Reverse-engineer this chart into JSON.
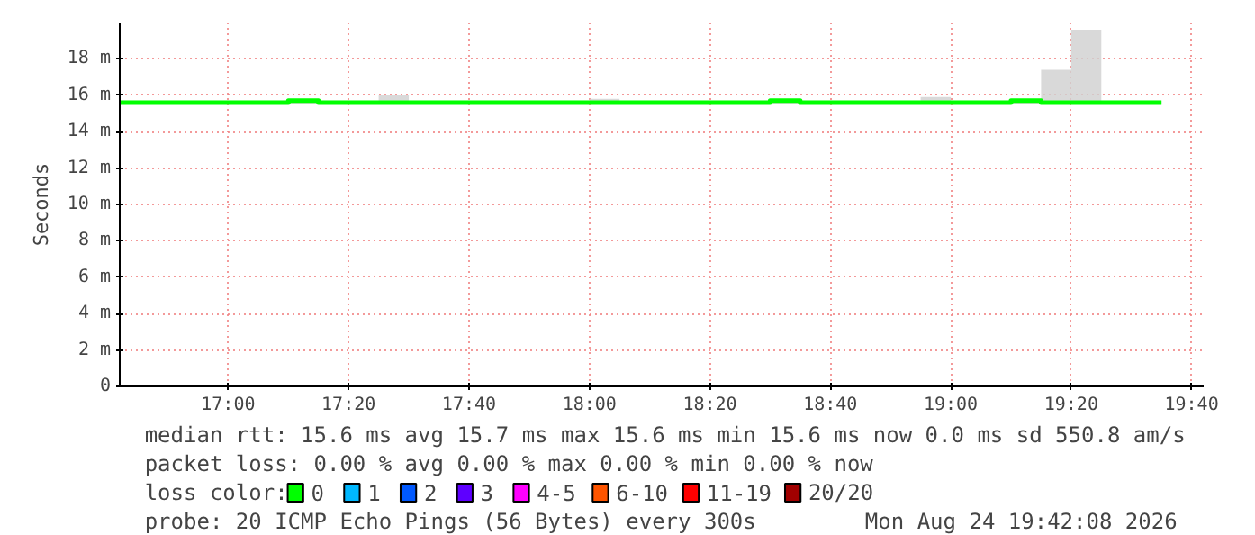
{
  "chart_data": {
    "type": "step",
    "ylabel": "Seconds",
    "xlim": [
      "2026-08-24T16:42",
      "2026-08-24T19:42"
    ],
    "xticks": [
      {
        "value": "2026-08-24T17:00",
        "label": "17:00"
      },
      {
        "value": "2026-08-24T17:20",
        "label": "17:20"
      },
      {
        "value": "2026-08-24T17:40",
        "label": "17:40"
      },
      {
        "value": "2026-08-24T18:00",
        "label": "18:00"
      },
      {
        "value": "2026-08-24T18:20",
        "label": "18:20"
      },
      {
        "value": "2026-08-24T18:40",
        "label": "18:40"
      },
      {
        "value": "2026-08-24T19:00",
        "label": "19:00"
      },
      {
        "value": "2026-08-24T19:20",
        "label": "19:20"
      },
      {
        "value": "2026-08-24T19:40",
        "label": "19:40"
      }
    ],
    "ylim": [
      0,
      20
    ],
    "yticks": [
      0,
      {
        "value": 2,
        "label": "2 m"
      },
      {
        "value": 4,
        "label": "4 m"
      },
      {
        "value": 6,
        "label": "6 m"
      },
      {
        "value": 8,
        "label": "8 m"
      },
      {
        "value": 10,
        "label": "10 m"
      },
      {
        "value": 12,
        "label": "12 m"
      },
      {
        "value": 14,
        "label": "14 m"
      },
      {
        "value": 16,
        "label": "16 m"
      },
      {
        "value": 18,
        "label": "18 m"
      }
    ],
    "x": [
      "2026-08-24T16:42",
      "2026-08-24T16:45",
      "2026-08-24T16:50",
      "2026-08-24T16:55",
      "2026-08-24T17:00",
      "2026-08-24T17:05",
      "2026-08-24T17:10",
      "2026-08-24T17:15",
      "2026-08-24T17:20",
      "2026-08-24T17:25",
      "2026-08-24T17:30",
      "2026-08-24T17:35",
      "2026-08-24T17:40",
      "2026-08-24T17:45",
      "2026-08-24T17:50",
      "2026-08-24T17:55",
      "2026-08-24T18:00",
      "2026-08-24T18:05",
      "2026-08-24T18:10",
      "2026-08-24T18:15",
      "2026-08-24T18:20",
      "2026-08-24T18:25",
      "2026-08-24T18:30",
      "2026-08-24T18:35",
      "2026-08-24T18:40",
      "2026-08-24T18:45",
      "2026-08-24T18:50",
      "2026-08-24T18:55",
      "2026-08-24T19:00",
      "2026-08-24T19:05",
      "2026-08-24T19:10",
      "2026-08-24T19:15",
      "2026-08-24T19:20",
      "2026-08-24T19:25",
      "2026-08-24T19:30",
      "2026-08-24T19:35"
    ],
    "series": [
      {
        "name": "0",
        "color": "#00ff00",
        "values": [
          15.6,
          15.6,
          15.6,
          15.6,
          15.6,
          15.6,
          15.7,
          15.6,
          15.6,
          15.6,
          15.6,
          15.6,
          15.6,
          15.6,
          15.6,
          15.6,
          15.6,
          15.6,
          15.6,
          15.6,
          15.6,
          15.6,
          15.7,
          15.6,
          15.6,
          15.6,
          15.6,
          15.6,
          15.6,
          15.6,
          15.7,
          15.6,
          15.6,
          15.6,
          15.6,
          15.6
        ],
        "lower": [
          15.5,
          15.5,
          15.5,
          15.5,
          15.5,
          15.5,
          15.5,
          15.5,
          15.5,
          15.5,
          15.5,
          15.5,
          15.5,
          15.5,
          15.5,
          15.5,
          15.5,
          15.5,
          15.5,
          15.5,
          15.5,
          15.5,
          15.5,
          15.5,
          15.5,
          15.5,
          15.5,
          15.5,
          15.5,
          15.5,
          15.5,
          15.5,
          15.5,
          15.5,
          15.5,
          15.5
        ],
        "upper": [
          15.7,
          15.7,
          15.7,
          15.7,
          15.7,
          15.7,
          15.7,
          15.7,
          15.7,
          16.0,
          15.7,
          15.7,
          15.7,
          15.7,
          15.7,
          15.7,
          15.8,
          15.7,
          15.7,
          15.7,
          15.7,
          15.7,
          15.7,
          15.7,
          15.7,
          15.7,
          15.7,
          15.9,
          15.7,
          15.7,
          15.7,
          17.4,
          19.6,
          15.7,
          15.7,
          15.7
        ]
      },
      {
        "name": "1",
        "color": "#00b8ff",
        "values": [
          null,
          null,
          null,
          null,
          null,
          null,
          null,
          null,
          null,
          null,
          null,
          null,
          null,
          null,
          null,
          null,
          null,
          null,
          null,
          null,
          null,
          null,
          null,
          null,
          null,
          null,
          null,
          null,
          null,
          null,
          null,
          null,
          null,
          null,
          null,
          null
        ]
      },
      {
        "name": "2",
        "color": "#0059ff",
        "values": [
          null,
          null,
          null,
          null,
          null,
          null,
          null,
          null,
          null,
          null,
          null,
          null,
          null,
          null,
          null,
          null,
          null,
          null,
          null,
          null,
          null,
          null,
          null,
          null,
          null,
          null,
          null,
          null,
          null,
          null,
          null,
          null,
          null,
          null,
          null,
          null
        ]
      },
      {
        "name": "3",
        "color": "#5e00ff",
        "values": [
          null,
          null,
          null,
          null,
          null,
          null,
          null,
          null,
          null,
          null,
          null,
          null,
          null,
          null,
          null,
          null,
          null,
          null,
          null,
          null,
          null,
          null,
          null,
          null,
          null,
          null,
          null,
          null,
          null,
          null,
          null,
          null,
          null,
          null,
          null,
          null
        ]
      },
      {
        "name": "4-5",
        "color": "#ff00ff",
        "values": [
          null,
          null,
          null,
          null,
          null,
          null,
          null,
          null,
          null,
          null,
          null,
          null,
          null,
          null,
          null,
          null,
          null,
          null,
          null,
          null,
          null,
          null,
          null,
          null,
          null,
          null,
          null,
          null,
          null,
          null,
          null,
          null,
          null,
          null,
          null,
          null
        ]
      },
      {
        "name": "6-10",
        "color": "#ff5500",
        "values": [
          null,
          null,
          null,
          null,
          null,
          null,
          null,
          null,
          null,
          null,
          null,
          null,
          null,
          null,
          null,
          null,
          null,
          null,
          null,
          null,
          null,
          null,
          null,
          null,
          null,
          null,
          null,
          null,
          null,
          null,
          null,
          null,
          null,
          null,
          null,
          null
        ]
      },
      {
        "name": "11-19",
        "color": "#ff0000",
        "values": [
          null,
          null,
          null,
          null,
          null,
          null,
          null,
          null,
          null,
          null,
          null,
          null,
          null,
          null,
          null,
          null,
          null,
          null,
          null,
          null,
          null,
          null,
          null,
          null,
          null,
          null,
          null,
          null,
          null,
          null,
          null,
          null,
          null,
          null,
          null,
          null
        ]
      },
      {
        "name": "20/20",
        "color": "#a10000",
        "values": [
          null,
          null,
          null,
          null,
          null,
          null,
          null,
          null,
          null,
          null,
          null,
          null,
          null,
          null,
          null,
          null,
          null,
          null,
          null,
          null,
          null,
          null,
          null,
          null,
          null,
          null,
          null,
          null,
          null,
          null,
          null,
          null,
          null,
          null,
          null,
          null
        ]
      }
    ],
    "legend": "bottom",
    "legend_title": "loss color:",
    "grid": true,
    "line_style": "solid",
    "annotations": [
      "median rtt:  15.6 ms avg  15.7 ms max  15.6 ms min  15.6 ms now  0.0 ms sd  550.8   am/s",
      "packet loss: 0.00 % avg  0.00 % max  0.00 % min  0.00 % now",
      "probe:       20 ICMP Echo Pings (56 Bytes) every 300s",
      "Mon Aug 24 19:42:08 2026"
    ]
  }
}
